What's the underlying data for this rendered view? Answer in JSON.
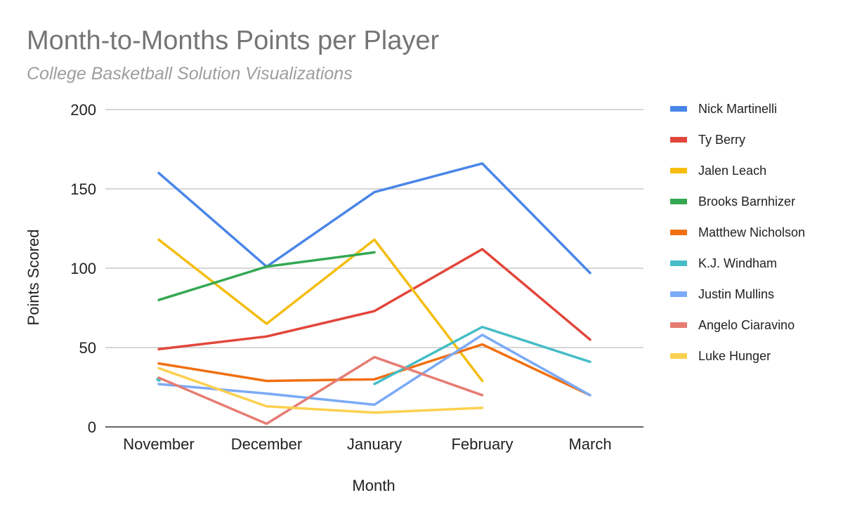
{
  "chart_data": {
    "type": "line",
    "title": "Month-to-Months Points per Player",
    "subtitle": "College Basketball Solution Visualizations",
    "xlabel": "Month",
    "ylabel": "Points Scored",
    "categories": [
      "November",
      "December",
      "January",
      "February",
      "March"
    ],
    "ylim": [
      0,
      200
    ],
    "yticks": [
      0,
      50,
      100,
      150,
      200
    ],
    "grid": true,
    "legend_position": "right",
    "series": [
      {
        "name": "Nick Martinelli",
        "color": "#4a86e8",
        "values": [
          160,
          101,
          148,
          166,
          97
        ]
      },
      {
        "name": "Ty Berry",
        "color": "#e2463b",
        "values": [
          49,
          57,
          73,
          112,
          55
        ]
      },
      {
        "name": "Jalen Leach",
        "color": "#f4bd10",
        "values": [
          118,
          65,
          118,
          29,
          null
        ]
      },
      {
        "name": "Brooks Barnhizer",
        "color": "#34a853",
        "values": [
          80,
          101,
          110,
          null,
          null
        ]
      },
      {
        "name": "Matthew Nicholson",
        "color": "#f07011",
        "values": [
          40,
          29,
          30,
          52,
          20
        ]
      },
      {
        "name": "K.J. Windham",
        "color": "#46bdc6",
        "values": [
          30,
          null,
          27,
          63,
          41
        ]
      },
      {
        "name": "Justin Mullins",
        "color": "#7baaf7",
        "values": [
          27,
          21,
          14,
          58,
          20
        ]
      },
      {
        "name": "Angelo Ciaravino",
        "color": "#e67c73",
        "values": [
          31,
          2,
          44,
          20,
          null
        ]
      },
      {
        "name": "Luke Hunger",
        "color": "#fcd04f",
        "values": [
          37,
          13,
          9,
          12,
          null
        ]
      }
    ]
  }
}
